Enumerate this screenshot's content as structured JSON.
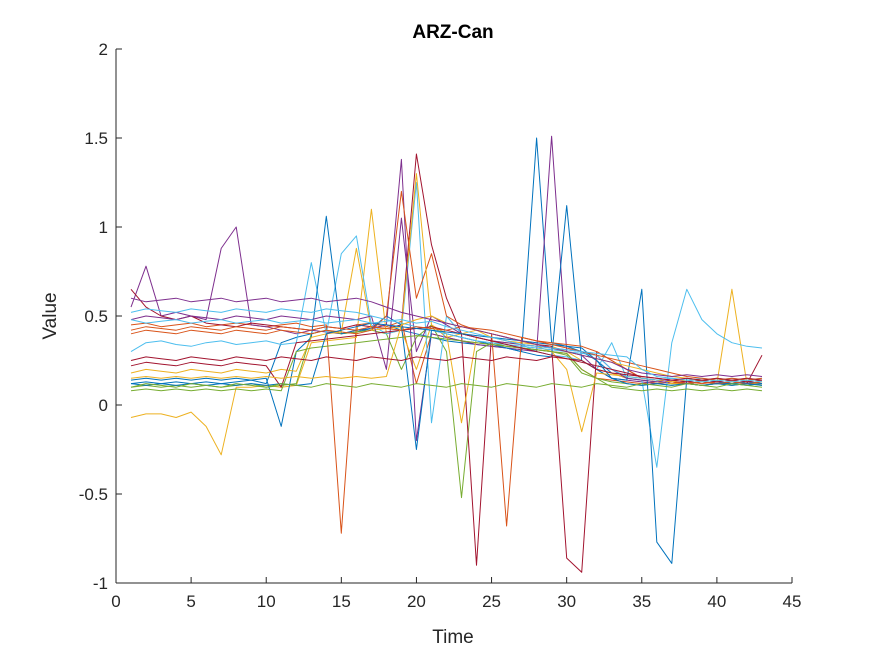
{
  "chart_data": {
    "type": "line",
    "title": "ARZ-Can",
    "xlabel": "Time",
    "ylabel": "Value",
    "xlim": [
      0,
      45
    ],
    "ylim": [
      -1,
      2
    ],
    "xticks": [
      0,
      5,
      10,
      15,
      20,
      25,
      30,
      35,
      40,
      45
    ],
    "yticks": [
      -1,
      -0.5,
      0,
      0.5,
      1,
      1.5,
      2
    ],
    "ytick_labels": [
      "-1",
      "-0.5",
      "0",
      "0.5",
      "1",
      "1.5",
      "2"
    ],
    "grid": false,
    "legend": "none",
    "colors": [
      "#0072BD",
      "#D95319",
      "#EDB120",
      "#7E2F8E",
      "#77AC30",
      "#4DBEEE",
      "#A2142F"
    ],
    "x": [
      1,
      2,
      3,
      4,
      5,
      6,
      7,
      8,
      9,
      10,
      11,
      12,
      13,
      14,
      15,
      16,
      17,
      18,
      19,
      20,
      21,
      22,
      23,
      24,
      25,
      26,
      27,
      28,
      29,
      30,
      31,
      32,
      33,
      34,
      35,
      36,
      37,
      38,
      39,
      40,
      41,
      42,
      43
    ],
    "series": [
      {
        "values": [
          0.12,
          0.13,
          0.12,
          0.13,
          0.12,
          0.13,
          0.12,
          0.13,
          0.14,
          0.12,
          0.35,
          0.38,
          0.4,
          0.42,
          0.4,
          0.41,
          0.43,
          0.45,
          0.42,
          0.4,
          0.38,
          0.36,
          0.35,
          0.34,
          0.33,
          0.32,
          0.3,
          1.5,
          0.35,
          0.33,
          0.3,
          0.25,
          0.18,
          0.15,
          0.14,
          0.13,
          0.12,
          0.12,
          0.11,
          0.12,
          0.12,
          0.11,
          0.12
        ]
      },
      {
        "values": [
          0.45,
          0.46,
          0.44,
          0.45,
          0.46,
          0.44,
          0.45,
          0.46,
          0.45,
          0.44,
          0.45,
          0.46,
          0.44,
          0.45,
          -0.72,
          0.45,
          0.46,
          0.44,
          0.47,
          0.12,
          0.4,
          0.38,
          0.36,
          0.35,
          0.34,
          0.33,
          0.32,
          0.31,
          0.3,
          0.29,
          0.2,
          0.15,
          0.14,
          0.13,
          0.12,
          0.13,
          0.12,
          0.13,
          0.12,
          0.13,
          0.12,
          0.13,
          0.12
        ]
      },
      {
        "values": [
          -0.07,
          -0.05,
          -0.05,
          -0.07,
          -0.04,
          -0.12,
          -0.28,
          0.1,
          0.1,
          0.11,
          0.1,
          0.11,
          0.35,
          0.36,
          0.37,
          0.38,
          1.1,
          0.4,
          0.42,
          0.2,
          0.45,
          0.38,
          0.4,
          0.42,
          0.38,
          0.36,
          0.35,
          0.34,
          0.33,
          0.3,
          0.25,
          0.2,
          0.18,
          0.15,
          0.14,
          0.13,
          0.12,
          0.12,
          0.11,
          0.12,
          0.65,
          0.12,
          0.12
        ]
      },
      {
        "values": [
          0.55,
          0.78,
          0.5,
          0.52,
          0.5,
          0.48,
          0.88,
          1.0,
          0.45,
          0.44,
          0.42,
          0.4,
          0.42,
          0.41,
          0.4,
          0.42,
          0.43,
          0.45,
          1.38,
          -0.2,
          0.4,
          0.38,
          0.36,
          0.34,
          0.33,
          0.32,
          0.31,
          0.3,
          1.51,
          0.3,
          0.28,
          0.2,
          0.15,
          0.14,
          0.13,
          0.12,
          0.13,
          0.12,
          0.13,
          0.12,
          0.13,
          0.12,
          0.13
        ]
      },
      {
        "values": [
          0.1,
          0.11,
          0.1,
          0.11,
          0.1,
          0.11,
          0.1,
          0.11,
          0.12,
          0.1,
          0.11,
          0.12,
          0.4,
          0.42,
          0.4,
          0.41,
          0.42,
          0.4,
          0.2,
          0.38,
          0.45,
          0.3,
          -0.52,
          0.3,
          0.35,
          0.33,
          0.32,
          0.31,
          0.3,
          0.28,
          0.18,
          0.15,
          0.13,
          0.12,
          0.11,
          0.12,
          0.11,
          0.12,
          0.11,
          0.12,
          0.11,
          0.12,
          0.11
        ]
      },
      {
        "values": [
          0.3,
          0.35,
          0.36,
          0.34,
          0.33,
          0.35,
          0.36,
          0.34,
          0.35,
          0.36,
          0.34,
          0.35,
          0.8,
          0.4,
          0.85,
          0.95,
          0.45,
          0.4,
          0.42,
          1.25,
          -0.1,
          0.5,
          0.4,
          0.38,
          0.36,
          0.35,
          0.34,
          0.3,
          0.28,
          0.27,
          0.25,
          0.2,
          0.35,
          0.15,
          0.14,
          -0.35,
          0.35,
          0.65,
          0.48,
          0.4,
          0.35,
          0.33,
          0.32
        ]
      },
      {
        "values": [
          0.65,
          0.55,
          0.5,
          0.48,
          0.5,
          0.46,
          0.45,
          0.44,
          0.46,
          0.45,
          0.44,
          0.43,
          0.42,
          0.44,
          0.43,
          0.45,
          0.44,
          0.43,
          0.45,
          1.41,
          0.9,
          0.6,
          0.4,
          -0.9,
          0.4,
          0.38,
          0.36,
          0.34,
          0.33,
          -0.86,
          -0.94,
          0.3,
          0.25,
          0.2,
          0.15,
          0.14,
          0.13,
          0.12,
          0.13,
          0.12,
          0.13,
          0.12,
          0.28
        ]
      },
      {
        "values": [
          0.14,
          0.15,
          0.14,
          0.15,
          0.14,
          0.15,
          0.14,
          0.15,
          0.14,
          0.15,
          -0.12,
          0.3,
          0.38,
          1.06,
          0.4,
          0.42,
          0.43,
          0.5,
          0.45,
          -0.25,
          0.42,
          0.4,
          0.38,
          0.36,
          0.34,
          0.32,
          0.3,
          0.28,
          0.27,
          1.12,
          0.25,
          0.2,
          0.15,
          0.14,
          0.65,
          -0.77,
          -0.89,
          0.15,
          0.14,
          0.13,
          0.12,
          0.13,
          0.12
        ]
      },
      {
        "values": [
          0.4,
          0.42,
          0.41,
          0.4,
          0.42,
          0.41,
          0.4,
          0.42,
          0.41,
          0.4,
          0.42,
          0.41,
          0.4,
          0.42,
          0.41,
          0.4,
          0.42,
          0.5,
          1.2,
          0.6,
          0.85,
          0.5,
          0.45,
          0.42,
          0.4,
          -0.68,
          0.38,
          0.36,
          0.35,
          0.34,
          0.33,
          0.3,
          0.25,
          0.2,
          0.15,
          0.14,
          0.13,
          0.12,
          0.13,
          0.12,
          0.13,
          0.12,
          0.13
        ]
      },
      {
        "values": [
          0.18,
          0.2,
          0.19,
          0.18,
          0.2,
          0.19,
          0.18,
          0.2,
          0.19,
          0.18,
          0.2,
          0.19,
          0.38,
          0.4,
          0.41,
          0.88,
          0.42,
          0.43,
          0.44,
          1.3,
          0.45,
          0.4,
          -0.1,
          0.38,
          0.36,
          0.35,
          0.34,
          0.33,
          0.3,
          0.2,
          -0.15,
          0.18,
          0.17,
          0.16,
          0.15,
          0.14,
          0.13,
          0.14,
          0.13,
          0.14,
          0.13,
          0.14,
          0.13
        ]
      },
      {
        "values": [
          0.48,
          0.5,
          0.49,
          0.48,
          0.5,
          0.49,
          0.48,
          0.5,
          0.49,
          0.48,
          0.5,
          0.49,
          0.48,
          0.5,
          0.49,
          0.48,
          0.5,
          0.2,
          1.05,
          0.3,
          0.5,
          0.45,
          0.4,
          0.38,
          0.36,
          0.35,
          0.34,
          0.33,
          0.32,
          0.31,
          0.3,
          0.28,
          0.2,
          0.15,
          0.14,
          0.13,
          0.14,
          0.13,
          0.14,
          0.13,
          0.14,
          0.13,
          0.14
        ]
      },
      {
        "values": [
          0.08,
          0.09,
          0.08,
          0.09,
          0.08,
          0.09,
          0.08,
          0.09,
          0.08,
          0.09,
          0.08,
          0.3,
          0.32,
          0.33,
          0.34,
          0.35,
          0.36,
          0.37,
          0.38,
          0.39,
          0.38,
          0.37,
          0.36,
          0.35,
          0.34,
          0.33,
          0.32,
          0.31,
          0.3,
          0.29,
          0.2,
          0.15,
          0.1,
          0.09,
          0.08,
          0.09,
          0.08,
          0.09,
          0.08,
          0.09,
          0.08,
          0.09,
          0.08
        ]
      },
      {
        "values": [
          0.52,
          0.54,
          0.53,
          0.52,
          0.54,
          0.53,
          0.52,
          0.54,
          0.53,
          0.52,
          0.54,
          0.53,
          0.52,
          0.54,
          0.53,
          0.52,
          0.5,
          0.48,
          0.46,
          0.44,
          0.42,
          0.4,
          0.38,
          0.36,
          0.35,
          0.34,
          0.33,
          0.32,
          0.31,
          0.3,
          0.29,
          0.28,
          0.2,
          0.16,
          0.15,
          0.14,
          0.15,
          0.14,
          0.15,
          0.14,
          0.15,
          0.14,
          0.15
        ]
      },
      {
        "values": [
          0.22,
          0.24,
          0.23,
          0.22,
          0.24,
          0.23,
          0.22,
          0.24,
          0.23,
          0.22,
          0.1,
          0.35,
          0.36,
          0.37,
          0.38,
          0.39,
          0.4,
          0.41,
          0.42,
          0.43,
          0.44,
          0.42,
          0.4,
          0.38,
          0.36,
          0.34,
          0.32,
          0.3,
          0.28,
          0.26,
          0.24,
          0.22,
          0.2,
          0.18,
          0.16,
          0.15,
          0.14,
          0.13,
          0.14,
          0.13,
          0.14,
          0.13,
          0.14
        ]
      },
      {
        "values": [
          0.12,
          0.11,
          0.12,
          0.11,
          0.12,
          0.11,
          0.12,
          0.11,
          0.12,
          0.11,
          0.12,
          0.11,
          0.12,
          0.4,
          0.42,
          0.44,
          0.46,
          0.45,
          0.44,
          0.43,
          0.42,
          0.41,
          0.4,
          0.39,
          0.38,
          0.37,
          0.36,
          0.35,
          0.34,
          0.33,
          0.32,
          0.25,
          0.15,
          0.12,
          0.11,
          0.12,
          0.11,
          0.12,
          0.11,
          0.12,
          0.11,
          0.12,
          0.11
        ]
      },
      {
        "values": [
          0.42,
          0.44,
          0.43,
          0.42,
          0.44,
          0.43,
          0.42,
          0.44,
          0.43,
          0.42,
          0.44,
          0.43,
          0.42,
          0.44,
          0.43,
          0.42,
          0.44,
          0.43,
          0.42,
          0.44,
          0.43,
          0.42,
          0.44,
          0.43,
          0.42,
          0.4,
          0.38,
          0.36,
          0.34,
          0.32,
          0.3,
          0.28,
          0.26,
          0.24,
          0.22,
          0.2,
          0.18,
          0.16,
          0.15,
          0.14,
          0.15,
          0.14,
          0.15
        ]
      },
      {
        "values": [
          0.15,
          0.16,
          0.15,
          0.16,
          0.15,
          0.16,
          0.15,
          0.16,
          0.15,
          0.16,
          0.15,
          0.16,
          0.15,
          0.16,
          0.15,
          0.16,
          0.15,
          0.16,
          0.45,
          0.48,
          0.5,
          0.46,
          0.44,
          0.42,
          0.4,
          0.38,
          0.36,
          0.34,
          0.32,
          0.3,
          0.28,
          0.26,
          0.24,
          0.22,
          0.2,
          0.18,
          0.16,
          0.15,
          0.14,
          0.15,
          0.14,
          0.15,
          0.14
        ]
      },
      {
        "values": [
          0.6,
          0.58,
          0.59,
          0.6,
          0.58,
          0.59,
          0.6,
          0.58,
          0.59,
          0.6,
          0.58,
          0.59,
          0.6,
          0.58,
          0.59,
          0.6,
          0.58,
          0.55,
          0.52,
          0.5,
          0.48,
          0.46,
          0.44,
          0.42,
          0.4,
          0.38,
          0.36,
          0.34,
          0.32,
          0.3,
          0.28,
          0.26,
          0.24,
          0.2,
          0.18,
          0.17,
          0.16,
          0.17,
          0.16,
          0.17,
          0.16,
          0.17,
          0.16
        ]
      },
      {
        "values": [
          0.1,
          0.12,
          0.11,
          0.1,
          0.12,
          0.11,
          0.1,
          0.12,
          0.11,
          0.1,
          0.12,
          0.11,
          0.1,
          0.12,
          0.11,
          0.1,
          0.12,
          0.11,
          0.1,
          0.12,
          0.11,
          0.1,
          0.12,
          0.11,
          0.1,
          0.12,
          0.11,
          0.1,
          0.12,
          0.11,
          0.1,
          0.12,
          0.11,
          0.1,
          0.12,
          0.11,
          0.1,
          0.12,
          0.11,
          0.1,
          0.12,
          0.11,
          0.1
        ]
      },
      {
        "values": [
          0.48,
          0.46,
          0.47,
          0.48,
          0.46,
          0.47,
          0.48,
          0.46,
          0.47,
          0.48,
          0.46,
          0.47,
          0.48,
          0.46,
          0.47,
          0.48,
          0.46,
          0.47,
          0.48,
          0.46,
          0.47,
          0.44,
          0.42,
          0.4,
          0.38,
          0.36,
          0.34,
          0.33,
          0.32,
          0.31,
          0.3,
          0.29,
          0.28,
          0.27,
          0.2,
          0.16,
          0.15,
          0.14,
          0.13,
          0.14,
          0.13,
          0.14,
          0.13
        ]
      },
      {
        "values": [
          0.25,
          0.27,
          0.26,
          0.25,
          0.27,
          0.26,
          0.25,
          0.27,
          0.26,
          0.25,
          0.27,
          0.26,
          0.25,
          0.27,
          0.26,
          0.25,
          0.27,
          0.26,
          0.25,
          0.27,
          0.26,
          0.25,
          0.27,
          0.26,
          0.25,
          0.27,
          0.26,
          0.25,
          0.27,
          0.26,
          0.25,
          0.2,
          0.18,
          0.17,
          0.16,
          0.15,
          0.14,
          0.15,
          0.14,
          0.15,
          0.14,
          0.15,
          0.14
        ]
      }
    ]
  }
}
